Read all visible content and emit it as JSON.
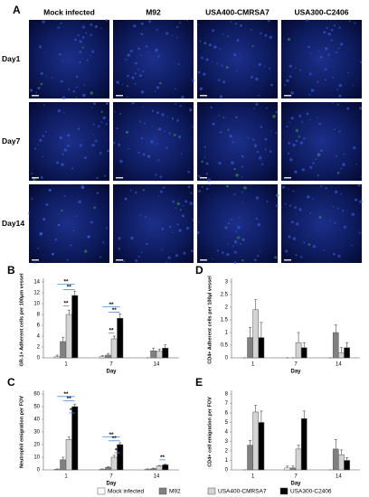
{
  "figure": {
    "panel_label": "A",
    "columns": [
      "Mock infected",
      "M92",
      "USA400-CMRSA7",
      "USA300-C2406"
    ],
    "rows": [
      "Day1",
      "Day7",
      "Day14"
    ]
  },
  "chart_data": [
    {
      "type": "bar",
      "label": "B",
      "y_label": "GR-1+ Adherent cells per 100μm vessel",
      "x_label": "Day",
      "categories": [
        "1",
        "7",
        "14"
      ],
      "ylim": [
        0,
        14
      ],
      "yticks": [
        0,
        2,
        4,
        6,
        8,
        10,
        12,
        14
      ],
      "series": [
        {
          "name": "Mock infected",
          "color": "#ffffff",
          "values": [
            0.2,
            0.2,
            0
          ],
          "errors": [
            0.3,
            0.2,
            0
          ]
        },
        {
          "name": "M92",
          "color": "#808080",
          "values": [
            3,
            0.5,
            1.3
          ],
          "errors": [
            0.8,
            0.3,
            0.5
          ]
        },
        {
          "name": "USA400-CMRSA7",
          "color": "#d3d3d3",
          "values": [
            8,
            3.5,
            1.2
          ],
          "errors": [
            0.8,
            0.5,
            0.4
          ]
        },
        {
          "name": "USA300-C2406",
          "color": "#000000",
          "values": [
            11.5,
            7.3,
            1.8
          ],
          "errors": [
            0.8,
            0.8,
            0.6
          ]
        }
      ],
      "annotations": [
        "**",
        "**",
        "**",
        "**",
        "**",
        "**"
      ]
    },
    {
      "type": "bar",
      "label": "C",
      "y_label": "Neutrophil emigration per FOV",
      "x_label": "Day",
      "categories": [
        "1",
        "7",
        "14"
      ],
      "ylim": [
        0,
        60
      ],
      "yticks": [
        0,
        10,
        20,
        30,
        40,
        50,
        60
      ],
      "series": [
        {
          "name": "Mock infected",
          "color": "#ffffff",
          "values": [
            0.5,
            0.5,
            0.5
          ],
          "errors": [
            0.3,
            0.3,
            0.3
          ]
        },
        {
          "name": "M92",
          "color": "#808080",
          "values": [
            8,
            2,
            1
          ],
          "errors": [
            2,
            0.5,
            0.4
          ]
        },
        {
          "name": "USA400-CMRSA7",
          "color": "#d3d3d3",
          "values": [
            24,
            10,
            3
          ],
          "errors": [
            2,
            1.5,
            0.5
          ]
        },
        {
          "name": "USA300-C2406",
          "color": "#000000",
          "values": [
            50,
            20,
            4
          ],
          "errors": [
            2,
            1.5,
            0.6
          ]
        }
      ],
      "annotations": [
        "**",
        "**",
        "**",
        "**",
        "**",
        "**",
        "**"
      ]
    },
    {
      "type": "bar",
      "label": "D",
      "y_label": "CD4+ Adherent cells per 100μl vessel",
      "x_label": "Day",
      "categories": [
        "1",
        "7",
        "14"
      ],
      "ylim": [
        0,
        3
      ],
      "yticks": [
        0,
        0.5,
        1,
        1.5,
        2,
        2.5,
        3
      ],
      "series": [
        {
          "name": "Mock infected",
          "color": "#ffffff",
          "values": [
            0,
            0,
            0
          ],
          "errors": [
            0,
            0,
            0
          ]
        },
        {
          "name": "M92",
          "color": "#808080",
          "values": [
            0.8,
            0,
            1.0
          ],
          "errors": [
            0.4,
            0,
            0.3
          ]
        },
        {
          "name": "USA400-CMRSA7",
          "color": "#d3d3d3",
          "values": [
            1.9,
            0.6,
            0.2
          ],
          "errors": [
            0.4,
            0.4,
            0.2
          ]
        },
        {
          "name": "USA300-C2406",
          "color": "#000000",
          "values": [
            0.8,
            0.4,
            0.4
          ],
          "errors": [
            0.6,
            0.2,
            0.2
          ]
        }
      ]
    },
    {
      "type": "bar",
      "label": "E",
      "y_label": "CD4+ cell emigration per FOV",
      "x_label": "Day",
      "categories": [
        "1",
        "7",
        "14"
      ],
      "ylim": [
        0,
        8
      ],
      "yticks": [
        0,
        1,
        2,
        3,
        4,
        5,
        6,
        7,
        8
      ],
      "series": [
        {
          "name": "Mock infected",
          "color": "#ffffff",
          "values": [
            0,
            0.2,
            0
          ],
          "errors": [
            0,
            0.2,
            0
          ]
        },
        {
          "name": "M92",
          "color": "#808080",
          "values": [
            2.6,
            0.2,
            2.2
          ],
          "errors": [
            0.5,
            0.2,
            1
          ]
        },
        {
          "name": "USA400-CMRSA7",
          "color": "#d3d3d3",
          "values": [
            6.1,
            2.2,
            1.6
          ],
          "errors": [
            0.7,
            0.4,
            0.5
          ]
        },
        {
          "name": "USA300-C2406",
          "color": "#000000",
          "values": [
            5,
            5.4,
            1
          ],
          "errors": [
            1.2,
            0.8,
            0.3
          ]
        }
      ]
    }
  ]
}
